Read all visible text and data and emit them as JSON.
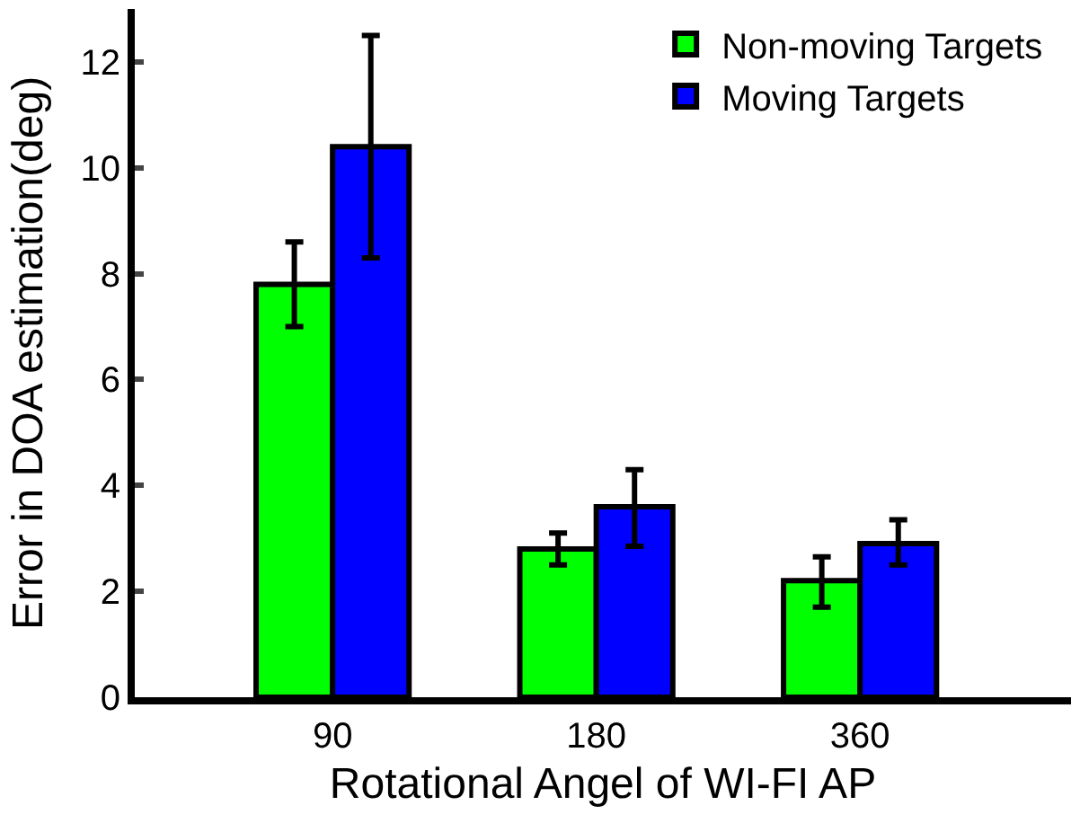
{
  "chart_data": {
    "type": "bar",
    "xlabel": "Rotational Angel of WI-FI AP",
    "ylabel": "Error in DOA estimation(deg)",
    "categories": [
      "90",
      "180",
      "360"
    ],
    "series": [
      {
        "name": "Non-moving Targets",
        "color": "#00ff00",
        "values": [
          7.8,
          2.8,
          2.2
        ],
        "errors": [
          [
            7.0,
            8.6
          ],
          [
            2.5,
            3.1
          ],
          [
            1.7,
            2.65
          ]
        ]
      },
      {
        "name": "Moving Targets",
        "color": "#0000ff",
        "values": [
          10.4,
          3.6,
          2.9
        ],
        "errors": [
          [
            8.3,
            12.5
          ],
          [
            2.85,
            4.3
          ],
          [
            2.5,
            3.35
          ]
        ]
      }
    ],
    "ylim": [
      0,
      13
    ],
    "yticks": [
      0,
      2,
      4,
      6,
      8,
      10,
      12
    ],
    "legend": "top right"
  }
}
